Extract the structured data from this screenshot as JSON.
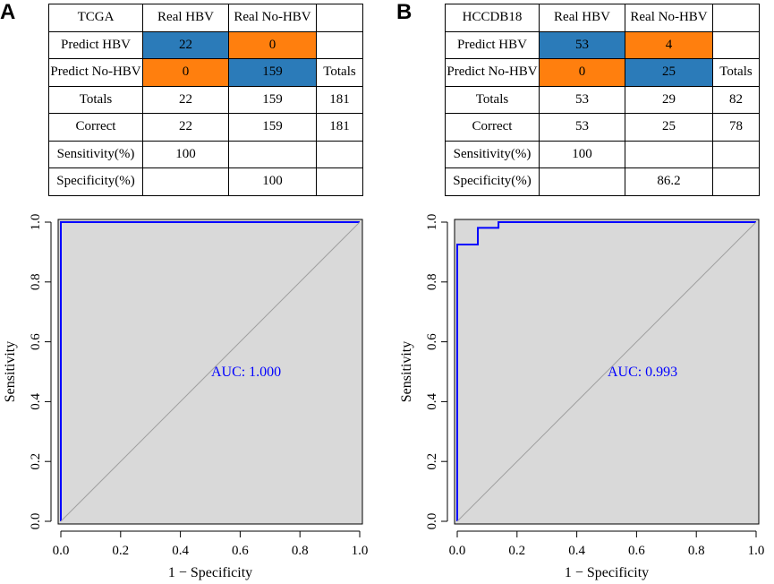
{
  "panels": [
    {
      "letter": "A",
      "table": {
        "corner": "TCGA",
        "col_real_hbv": "Real HBV",
        "col_real_no_hbv": "Real No-HBV",
        "row_predict_hbv": "Predict  HBV",
        "row_predict_no_hbv": "Predict No-HBV",
        "totals_col_label": "Totals",
        "row_totals": "Totals",
        "row_correct": "Correct",
        "row_sensitivity": "Sensitivity(%)",
        "row_specificity": "Specificity(%)",
        "tp": "22",
        "fp": "0",
        "fn": "0",
        "tn": "159",
        "total_hbv": "22",
        "total_no_hbv": "159",
        "total_all": "181",
        "correct_hbv": "22",
        "correct_no_hbv": "159",
        "correct_all": "181",
        "sensitivity": "100",
        "specificity": "100"
      }
    },
    {
      "letter": "B",
      "table": {
        "corner": "HCCDB18",
        "col_real_hbv": "Real HBV",
        "col_real_no_hbv": "Real No-HBV",
        "row_predict_hbv": "Predict  HBV",
        "row_predict_no_hbv": "Predict No-HBV",
        "totals_col_label": "Totals",
        "row_totals": "Totals",
        "row_correct": "Correct",
        "row_sensitivity": "Sensitivity(%)",
        "row_specificity": "Specificity(%)",
        "tp": "53",
        "fp": "4",
        "fn": "0",
        "tn": "25",
        "total_hbv": "53",
        "total_no_hbv": "29",
        "total_all": "82",
        "correct_hbv": "53",
        "correct_no_hbv": "25",
        "correct_all": "78",
        "sensitivity": "100",
        "specificity": "86.2"
      }
    }
  ],
  "colors": {
    "blue_cell": "#2b7bb9",
    "orange_cell": "#ff7f0e",
    "roc_curve": "#0000ff",
    "plot_bg": "#d9d9d9",
    "diagonal": "#a0a0a0"
  },
  "chart_data": [
    {
      "type": "line",
      "panel": "A",
      "title": "",
      "xlabel": "1 − Specificity",
      "ylabel": "Sensitivity",
      "xlim": [
        0,
        1
      ],
      "ylim": [
        0,
        1
      ],
      "x_ticks": [
        0.0,
        0.2,
        0.4,
        0.6,
        0.8,
        1.0
      ],
      "y_ticks": [
        0.0,
        0.2,
        0.4,
        0.6,
        0.8,
        1.0
      ],
      "x_tick_labels": [
        "0.0",
        "0.2",
        "0.4",
        "0.6",
        "0.8",
        "1.0"
      ],
      "y_tick_labels": [
        "0.0",
        "0.2",
        "0.4",
        "0.6",
        "0.8",
        "1.0"
      ],
      "grid": false,
      "series": [
        {
          "name": "ROC",
          "x": [
            0,
            0,
            1
          ],
          "y": [
            0,
            1,
            1
          ]
        },
        {
          "name": "diagonal",
          "x": [
            0,
            1
          ],
          "y": [
            0,
            1
          ]
        }
      ],
      "annotation": {
        "text": "AUC: 1.000",
        "x": 0.62,
        "y": 0.5
      }
    },
    {
      "type": "line",
      "panel": "B",
      "title": "",
      "xlabel": "1 − Specificity",
      "ylabel": "Sensitivity",
      "xlim": [
        0,
        1
      ],
      "ylim": [
        0,
        1
      ],
      "x_ticks": [
        0.0,
        0.2,
        0.4,
        0.6,
        0.8,
        1.0
      ],
      "y_ticks": [
        0.0,
        0.2,
        0.4,
        0.6,
        0.8,
        1.0
      ],
      "x_tick_labels": [
        "0.0",
        "0.2",
        "0.4",
        "0.6",
        "0.8",
        "1.0"
      ],
      "y_tick_labels": [
        "0.0",
        "0.2",
        "0.4",
        "0.6",
        "0.8",
        "1.0"
      ],
      "grid": false,
      "series": [
        {
          "name": "ROC",
          "x": [
            0,
            0,
            0.069,
            0.069,
            0.138,
            0.138,
            1
          ],
          "y": [
            0,
            0.925,
            0.925,
            0.981,
            0.981,
            1,
            1
          ]
        },
        {
          "name": "diagonal",
          "x": [
            0,
            1
          ],
          "y": [
            0,
            1
          ]
        }
      ],
      "annotation": {
        "text": "AUC: 0.993",
        "x": 0.62,
        "y": 0.5
      }
    }
  ]
}
